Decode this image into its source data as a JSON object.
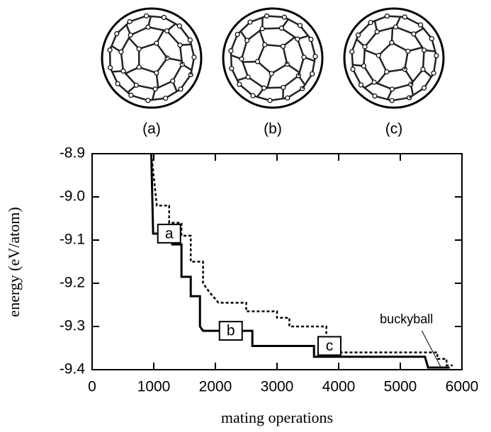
{
  "images": {
    "captions": [
      "(a)",
      "(b)",
      "(c)"
    ]
  },
  "chart_data": {
    "type": "line",
    "x_label": "mating operations",
    "y_label": "energy (eV/atom)",
    "xlim": [
      0,
      6000
    ],
    "xticks": [
      0,
      1000,
      2000,
      3000,
      4000,
      5000,
      6000
    ],
    "ylim": [
      -9.4,
      -8.9
    ],
    "yticks": [
      -8.9,
      {
        "value": -9,
        "label": "-9.0"
      },
      -9.1,
      -9.2,
      -9.3,
      -9.4
    ],
    "series": [
      {
        "color": "#000000",
        "dash": false,
        "x": [
          960,
          990,
          1300,
          1300,
          1450,
          1450,
          1600,
          1600,
          1750,
          1750,
          1800,
          2600,
          2600,
          3600,
          3600,
          5400,
          5450,
          5800
        ],
        "values": [
          -8.9,
          -9.085,
          -9.085,
          -9.11,
          -9.11,
          -9.185,
          -9.185,
          -9.23,
          -9.23,
          -9.3,
          -9.31,
          -9.31,
          -9.345,
          -9.345,
          -9.37,
          -9.37,
          -9.395,
          -9.395
        ]
      },
      {
        "color": "#000000",
        "dash": true,
        "x": [
          960,
          1050,
          1250,
          1250,
          1450,
          1450,
          1600,
          1600,
          1800,
          1800,
          1900,
          2050,
          2500,
          2500,
          3000,
          3000,
          3200,
          3200,
          3800,
          3800,
          4000,
          4000,
          5600,
          5600,
          5750,
          5750,
          5850
        ],
        "values": [
          -8.9,
          -9.02,
          -9.02,
          -9.06,
          -9.06,
          -9.09,
          -9.09,
          -9.15,
          -9.15,
          -9.2,
          -9.22,
          -9.245,
          -9.245,
          -9.265,
          -9.265,
          -9.28,
          -9.28,
          -9.3,
          -9.3,
          -9.335,
          -9.335,
          -9.36,
          -9.36,
          -9.375,
          -9.375,
          -9.39,
          -9.39
        ]
      }
    ],
    "annotations": [
      "a",
      "b",
      "c",
      "buckyball"
    ]
  }
}
